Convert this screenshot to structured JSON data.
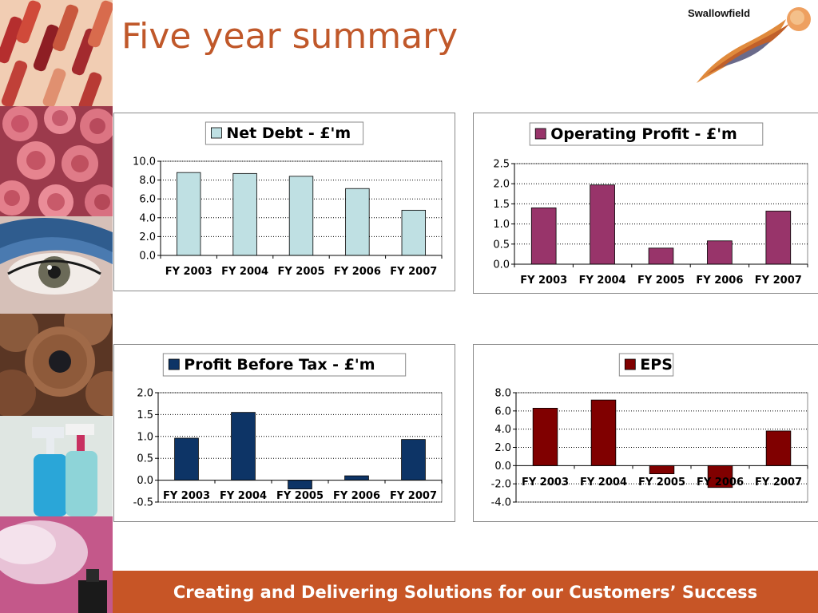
{
  "page": {
    "title": "Five year summary",
    "footer": "Creating and Delivering Solutions for our Customers’ Success"
  },
  "logo": {
    "text": "Swallowfield",
    "mark": "swallow-brushstroke-logo"
  },
  "photos": [
    "lipsticks-photo",
    "roses-photo",
    "eye-makeup-photo",
    "wooden-pencils-photo",
    "spray-bottles-photo",
    "aerosol-spray-photo"
  ],
  "chart_data": [
    {
      "type": "bar",
      "title": "Net Debt - £'m",
      "categories": [
        "FY 2003",
        "FY 2004",
        "FY 2005",
        "FY 2006",
        "FY 2007"
      ],
      "series": [
        {
          "name": "Net Debt - £'m",
          "values": [
            8.8,
            8.7,
            8.4,
            7.1,
            4.8
          ]
        }
      ],
      "ylim": [
        0,
        10
      ],
      "yticks": [
        "10.0",
        "8.0",
        "6.0",
        "4.0",
        "2.0",
        "0.0"
      ],
      "color": "#bfe0e3",
      "grid": true,
      "legend": "top-center"
    },
    {
      "type": "bar",
      "title": "Operating Profit - £'m",
      "categories": [
        "FY 2003",
        "FY 2004",
        "FY 2005",
        "FY 2006",
        "FY 2007"
      ],
      "series": [
        {
          "name": "Operating Profit - £'m",
          "values": [
            1.4,
            1.97,
            0.4,
            0.58,
            1.32
          ]
        }
      ],
      "ylim": [
        0,
        2.5
      ],
      "yticks": [
        "2.5",
        "2.0",
        "1.5",
        "1.0",
        "0.5",
        "0.0"
      ],
      "color": "#98346a",
      "grid": true,
      "legend": "top-center"
    },
    {
      "type": "bar",
      "title": "Profit Before Tax - £'m",
      "categories": [
        "FY 2003",
        "FY 2004",
        "FY 2005",
        "FY 2006",
        "FY 2007"
      ],
      "series": [
        {
          "name": "Profit Before Tax - £'m",
          "values": [
            0.96,
            1.55,
            -0.2,
            0.1,
            0.93
          ]
        }
      ],
      "ylim": [
        -0.5,
        2.0
      ],
      "yticks": [
        "2.0",
        "1.5",
        "1.0",
        "0.5",
        "0.0",
        "-0.5"
      ],
      "color": "#0d3466",
      "grid": true,
      "legend": "top-center"
    },
    {
      "type": "bar",
      "title": "EPS",
      "categories": [
        "FY 2003",
        "FY 2004",
        "FY 2005",
        "FY 2006",
        "FY 2007"
      ],
      "series": [
        {
          "name": "EPS",
          "values": [
            6.3,
            7.2,
            -0.9,
            -2.4,
            3.8
          ]
        }
      ],
      "ylim": [
        -4,
        8
      ],
      "yticks": [
        "8.0",
        "6.0",
        "4.0",
        "2.0",
        "0.0",
        "-2.0",
        "-4.0"
      ],
      "color": "#800000",
      "grid": true,
      "legend": "top-center"
    }
  ]
}
